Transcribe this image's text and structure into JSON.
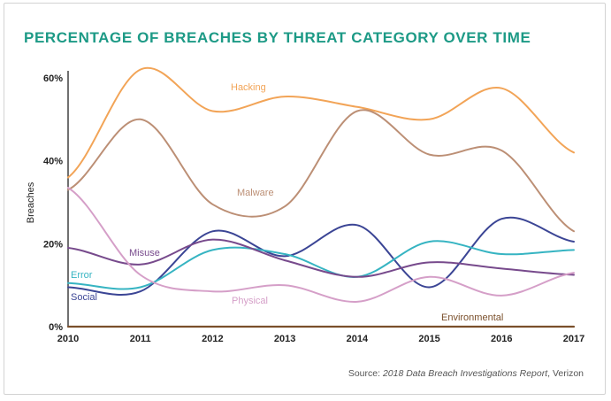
{
  "title": "PERCENTAGE OF BREACHES BY THREAT CATEGORY OVER TIME",
  "source": {
    "prefix": "Source: ",
    "report": "2018 Data Breach Investigations Report",
    "suffix": ", Verizon"
  },
  "chart_data": {
    "type": "line",
    "title": "PERCENTAGE OF BREACHES BY THREAT CATEGORY OVER TIME",
    "xlabel": "",
    "ylabel": "Breaches",
    "x": [
      2010,
      2011,
      2012,
      2013,
      2014,
      2015,
      2016,
      2017
    ],
    "xlim": [
      2010,
      2017
    ],
    "ylim": [
      0,
      60
    ],
    "y_ticks": [
      "0%",
      "20%",
      "40%",
      "60%"
    ],
    "y_tick_values": [
      0,
      20,
      40,
      60
    ],
    "grid": false,
    "legend": "inline labels",
    "series": [
      {
        "name": "Hacking",
        "color": "#f2a457",
        "values": [
          36,
          62,
          52,
          55.5,
          53,
          50,
          57.5,
          42
        ]
      },
      {
        "name": "Malware",
        "color": "#bc8f75",
        "values": [
          33,
          50,
          29.5,
          29,
          52,
          41.5,
          42.5,
          23
        ]
      },
      {
        "name": "Social",
        "color": "#3b4595",
        "values": [
          9.5,
          8.5,
          23,
          17,
          24.5,
          9.5,
          26,
          20.5
        ]
      },
      {
        "name": "Error",
        "color": "#36b4c2",
        "values": [
          10.5,
          9.5,
          18.5,
          17.5,
          12,
          20.5,
          17.5,
          18.5
        ]
      },
      {
        "name": "Misuse",
        "color": "#774a8c",
        "values": [
          19,
          15,
          21,
          16,
          12,
          15.5,
          14,
          12.5
        ]
      },
      {
        "name": "Physical",
        "color": "#d59fc8",
        "values": [
          33.5,
          12.5,
          8.5,
          10,
          6,
          12,
          7.5,
          13
        ]
      },
      {
        "name": "Environmental",
        "color": "#7a4f2b",
        "values": [
          0,
          0,
          0,
          0,
          0,
          0,
          0,
          0
        ]
      }
    ]
  }
}
